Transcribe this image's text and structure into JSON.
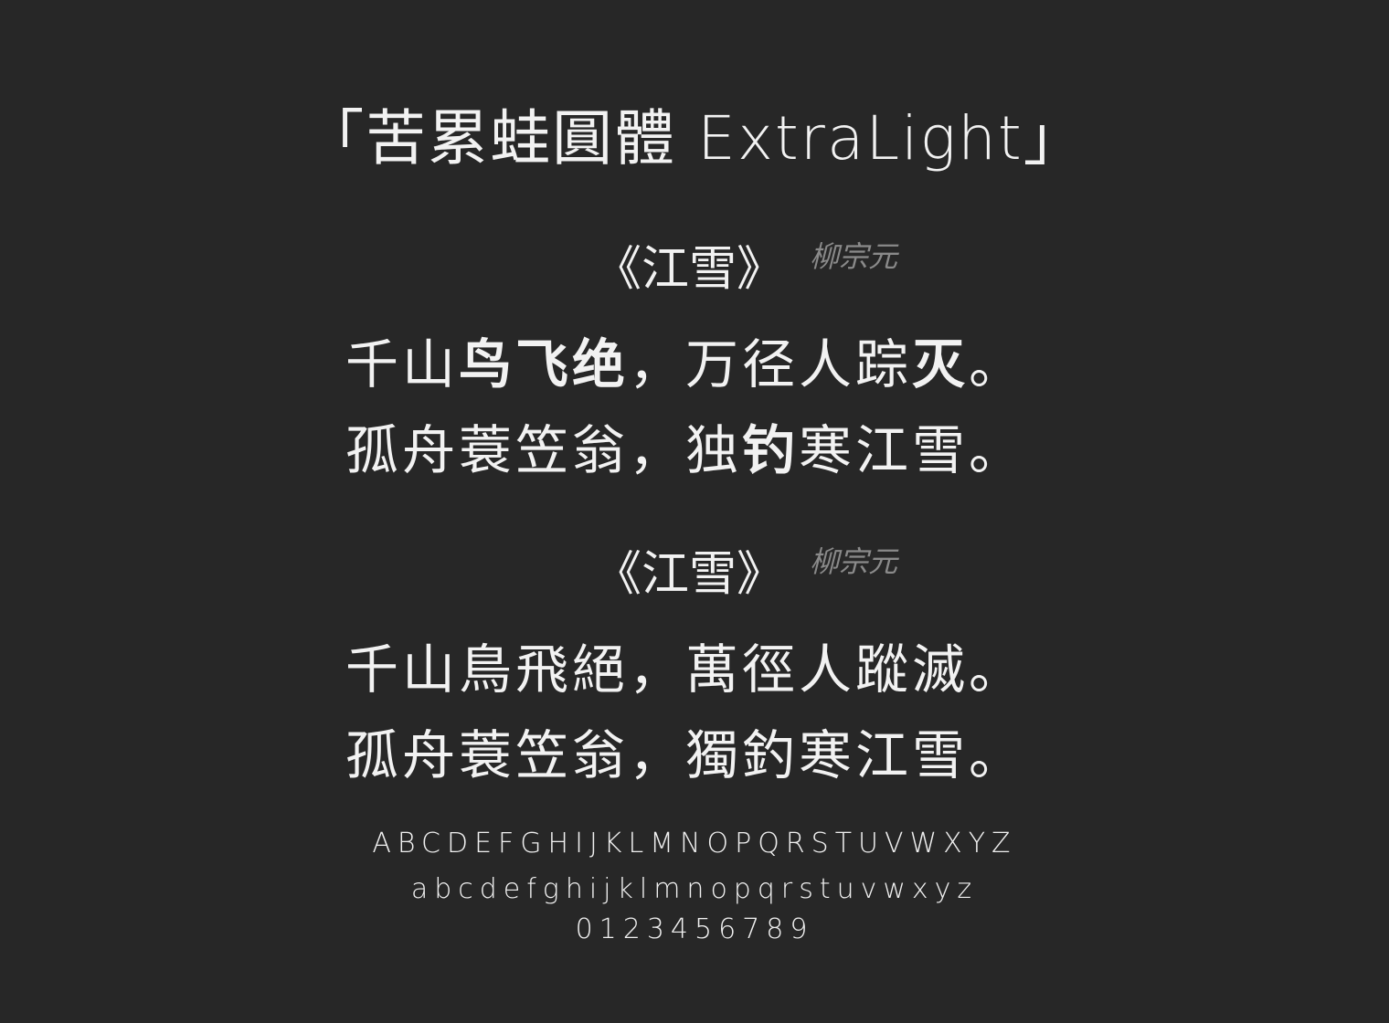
{
  "title": "「苦累蛙圓體 ExtraLight」",
  "simplified": {
    "poem_title": "《江雪》",
    "author": "柳宗元",
    "line1": [
      "千山",
      "鸟飞绝",
      "，万径人踪",
      "灭",
      "。"
    ],
    "line2": [
      "孤舟蓑笠翁，独",
      "钓",
      "寒江雪。"
    ]
  },
  "traditional": {
    "poem_title": "《江雪》",
    "author": "柳宗元",
    "line1": "千山鳥飛絕，萬徑人蹤滅。",
    "line2": "孤舟蓑笠翁，獨釣寒江雪。"
  },
  "specimen": {
    "uppercase": "ABCDEFGHIJKLMNOPQRSTUVWXYZ",
    "lowercase": "abcdefghijklmnopqrstuvwxyz",
    "digits": "0123456789"
  }
}
